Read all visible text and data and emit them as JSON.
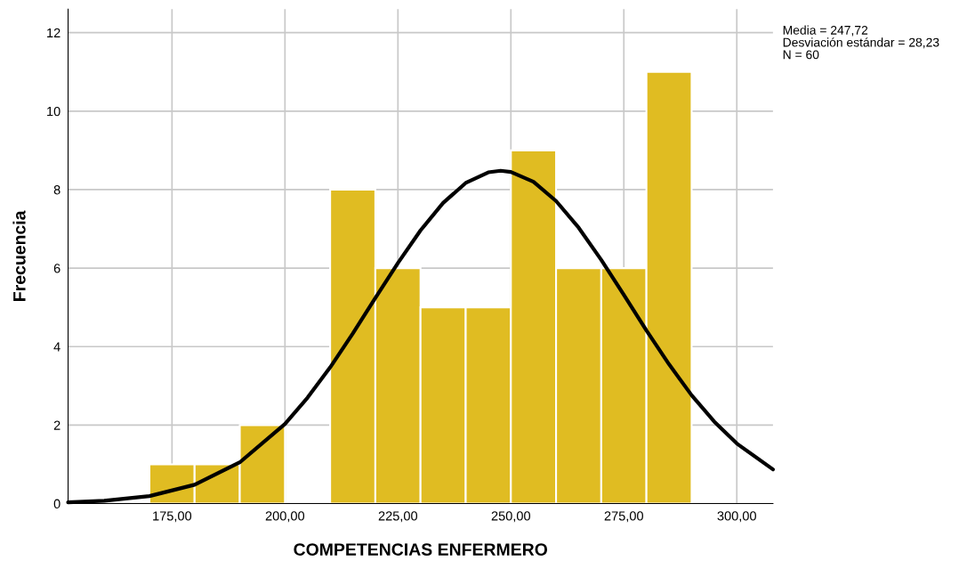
{
  "chart_data": {
    "type": "histogram",
    "xlabel": "COMPETENCIAS ENFERMERO",
    "ylabel": "Frecuencia",
    "bins": [
      170,
      180,
      190,
      200,
      210,
      220,
      230,
      240,
      250,
      260,
      270,
      280,
      290
    ],
    "values": [
      1,
      1,
      2,
      0,
      8,
      6,
      5,
      5,
      9,
      6,
      6,
      11
    ],
    "color": "#e0bc22",
    "series": [
      {
        "type": "line",
        "color": "#000000",
        "x": [
          152,
          160,
          170,
          180,
          190,
          200,
          205,
          210,
          215,
          220,
          225,
          230,
          235,
          240,
          245,
          247.72,
          250,
          255,
          260,
          265,
          270,
          275,
          280,
          285,
          290,
          295,
          300,
          308
        ],
        "values": [
          0.03,
          0.07,
          0.19,
          0.48,
          1.05,
          2.03,
          2.7,
          3.47,
          4.33,
          5.24,
          6.13,
          6.96,
          7.66,
          8.17,
          8.44,
          8.48,
          8.45,
          8.2,
          7.71,
          7.03,
          6.21,
          5.32,
          4.41,
          3.55,
          2.76,
          2.09,
          1.53,
          0.87
        ]
      }
    ],
    "xlim": [
      152,
      308
    ],
    "xticks": [
      {
        "value": 175,
        "label": "175,00"
      },
      {
        "value": 200,
        "label": "200,00"
      },
      {
        "value": 225,
        "label": "225,00"
      },
      {
        "value": 250,
        "label": "250,00"
      },
      {
        "value": 275,
        "label": "275,00"
      },
      {
        "value": 300,
        "label": "300,00"
      }
    ],
    "ylim": [
      0,
      12.6
    ],
    "yticks": [
      0,
      2,
      4,
      6,
      8,
      10,
      12
    ],
    "grid": true,
    "annotations": [
      "Media = 247,72",
      "Desviación estándar = 28,23",
      "N = 60"
    ]
  }
}
